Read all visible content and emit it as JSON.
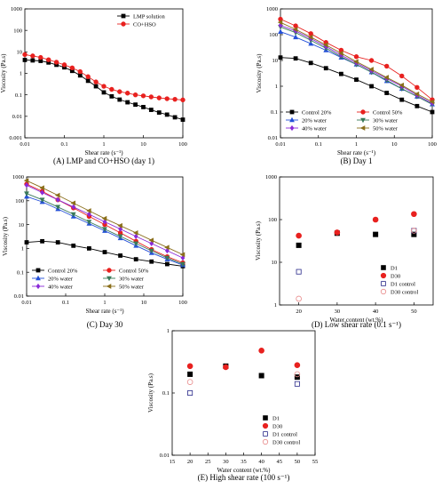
{
  "panels": [
    {
      "id": "A",
      "caption": "(A) LMP and CO+HSO (day 1)",
      "type": "line",
      "xscale": "log",
      "yscale": "log",
      "xlim": [
        0.01,
        100
      ],
      "ylim": [
        0.001,
        1000
      ],
      "xticks": [
        "0.01",
        "0.1",
        "1",
        "10",
        "100"
      ],
      "yticks": [
        "0.001",
        "0.01",
        "0.1",
        "1",
        "10",
        "100",
        "1000"
      ],
      "xlabel": "Shear rate (s⁻¹)",
      "ylabel": "Viscosity (Pa.s)",
      "legend": {
        "position": "top-right",
        "columns": 1
      },
      "series": [
        {
          "name": "LMP solution",
          "color": "#000000",
          "marker": "square",
          "x": [
            0.01,
            0.0158,
            0.0251,
            0.0398,
            0.0631,
            0.1,
            0.158,
            0.251,
            0.398,
            0.631,
            1,
            1.58,
            2.51,
            3.98,
            6.31,
            10,
            15.8,
            25.1,
            39.8,
            63.1,
            100
          ],
          "y": [
            4.2,
            4.0,
            3.8,
            3.2,
            2.5,
            1.9,
            1.3,
            0.8,
            0.45,
            0.25,
            0.13,
            0.085,
            0.06,
            0.045,
            0.035,
            0.027,
            0.02,
            0.015,
            0.012,
            0.009,
            0.007
          ]
        },
        {
          "name": "CO+HSO",
          "color": "#e8211f",
          "marker": "circle",
          "x": [
            0.01,
            0.0158,
            0.0251,
            0.0398,
            0.0631,
            0.1,
            0.158,
            0.251,
            0.398,
            0.631,
            1,
            1.58,
            2.51,
            3.98,
            6.31,
            10,
            15.8,
            25.1,
            39.8,
            63.1,
            100
          ],
          "y": [
            7.5,
            6.5,
            5.5,
            4.3,
            3.3,
            2.5,
            1.8,
            1.2,
            0.7,
            0.4,
            0.25,
            0.18,
            0.14,
            0.12,
            0.1,
            0.09,
            0.08,
            0.072,
            0.066,
            0.062,
            0.058
          ]
        }
      ]
    },
    {
      "id": "B",
      "caption": "(B) Day 1",
      "type": "line",
      "xscale": "log",
      "yscale": "log",
      "xlim": [
        0.01,
        100
      ],
      "ylim": [
        0.01,
        1000
      ],
      "xticks": [
        "0.01",
        "0.1",
        "1",
        "10",
        "100"
      ],
      "yticks": [
        "0.01",
        "0.1",
        "1",
        "10",
        "100",
        "1000"
      ],
      "xlabel": "Shear rate (s⁻¹)",
      "ylabel": "Viscosity (Pa.s)",
      "legend": {
        "position": "bottom-left",
        "columns": 2
      },
      "series": [
        {
          "name": "Control 20%",
          "color": "#000000",
          "marker": "square",
          "x": [
            0.01,
            0.0251,
            0.0631,
            0.158,
            0.398,
            1,
            2.51,
            6.31,
            15.8,
            39.8,
            100
          ],
          "y": [
            13,
            12,
            8,
            5,
            3,
            1.8,
            1,
            0.55,
            0.3,
            0.17,
            0.1
          ]
        },
        {
          "name": "Control 50%",
          "color": "#e8211f",
          "marker": "circle",
          "x": [
            0.01,
            0.0251,
            0.0631,
            0.158,
            0.398,
            1,
            2.51,
            6.31,
            15.8,
            39.8,
            100
          ],
          "y": [
            400,
            220,
            110,
            50,
            25,
            14,
            10,
            6,
            2.5,
            0.9,
            0.3
          ]
        },
        {
          "name": "20% water",
          "color": "#2450d8",
          "marker": "triangle",
          "x": [
            0.01,
            0.0251,
            0.0631,
            0.158,
            0.398,
            1,
            2.51,
            6.31,
            15.8,
            39.8,
            100
          ],
          "y": [
            130,
            80,
            45,
            25,
            13,
            7,
            3.5,
            1.6,
            0.8,
            0.4,
            0.2
          ]
        },
        {
          "name": "30% water",
          "color": "#3a7a5a",
          "marker": "triangle-down",
          "x": [
            0.01,
            0.0251,
            0.0631,
            0.158,
            0.398,
            1,
            2.51,
            6.31,
            15.8,
            39.8,
            100
          ],
          "y": [
            200,
            120,
            60,
            30,
            14,
            7,
            3.5,
            1.7,
            0.8,
            0.4,
            0.2
          ]
        },
        {
          "name": "40% water",
          "color": "#8a2ad8",
          "marker": "diamond",
          "x": [
            0.01,
            0.0251,
            0.0631,
            0.158,
            0.398,
            1,
            2.51,
            6.31,
            15.8,
            39.8,
            100
          ],
          "y": [
            230,
            140,
            70,
            35,
            16,
            8,
            4,
            2,
            1,
            0.45,
            0.22
          ]
        },
        {
          "name": "50% water",
          "color": "#8a6e1a",
          "marker": "triangle-left",
          "x": [
            0.01,
            0.0251,
            0.0631,
            0.158,
            0.398,
            1,
            2.51,
            6.31,
            15.8,
            39.8,
            100
          ],
          "y": [
            300,
            160,
            80,
            40,
            19,
            9,
            4.5,
            2.2,
            1.1,
            0.5,
            0.25
          ]
        }
      ]
    },
    {
      "id": "C",
      "caption": "(C) Day 30",
      "type": "line",
      "xscale": "log",
      "yscale": "log",
      "xlim": [
        0.01,
        100
      ],
      "ylim": [
        0.01,
        1000
      ],
      "xticks": [
        "0.01",
        "0.1",
        "1",
        "10",
        "100"
      ],
      "yticks": [
        "0.01",
        "0.1",
        "1",
        "10",
        "100",
        "1000"
      ],
      "xlabel": "Shear rate (s⁻¹)",
      "ylabel": "Viscosity (Pa.s)",
      "legend": {
        "position": "bottom-left",
        "columns": 2
      },
      "series": [
        {
          "name": "Control 20%",
          "color": "#000000",
          "marker": "square",
          "x": [
            0.01,
            0.0251,
            0.0631,
            0.158,
            0.398,
            1,
            2.51,
            6.31,
            15.8,
            39.8,
            100
          ],
          "y": [
            1.8,
            2,
            1.8,
            1.3,
            1.0,
            0.7,
            0.5,
            0.35,
            0.28,
            0.22,
            0.18
          ]
        },
        {
          "name": "Control 50%",
          "color": "#e8211f",
          "marker": "circle",
          "x": [
            0.01,
            0.0251,
            0.0631,
            0.158,
            0.398,
            1,
            2.51,
            6.31,
            15.8,
            39.8,
            100
          ],
          "y": [
            500,
            250,
            110,
            50,
            22,
            10,
            4.5,
            2,
            0.9,
            0.45,
            0.25
          ]
        },
        {
          "name": "20% water",
          "color": "#2450d8",
          "marker": "triangle",
          "x": [
            0.01,
            0.0251,
            0.0631,
            0.158,
            0.398,
            1,
            2.51,
            6.31,
            15.8,
            39.8,
            100
          ],
          "y": [
            150,
            90,
            45,
            22,
            11,
            5.5,
            2.7,
            1.3,
            0.65,
            0.35,
            0.2
          ]
        },
        {
          "name": "30% water",
          "color": "#3a7a5a",
          "marker": "triangle-down",
          "x": [
            0.01,
            0.0251,
            0.0631,
            0.158,
            0.398,
            1,
            2.51,
            6.31,
            15.8,
            39.8,
            100
          ],
          "y": [
            200,
            110,
            55,
            27,
            13,
            6.5,
            3.2,
            1.6,
            0.8,
            0.4,
            0.22
          ]
        },
        {
          "name": "40% water",
          "color": "#8a2ad8",
          "marker": "diamond",
          "x": [
            0.01,
            0.0251,
            0.0631,
            0.158,
            0.398,
            1,
            2.51,
            6.31,
            15.8,
            39.8,
            100
          ],
          "y": [
            450,
            220,
            110,
            55,
            27,
            13,
            6.5,
            3.2,
            1.6,
            0.8,
            0.4
          ]
        },
        {
          "name": "50% water",
          "color": "#8a6e1a",
          "marker": "triangle-left",
          "x": [
            0.01,
            0.0251,
            0.0631,
            0.158,
            0.398,
            1,
            2.51,
            6.31,
            15.8,
            39.8,
            100
          ],
          "y": [
            700,
            350,
            170,
            80,
            38,
            18,
            9,
            4.5,
            2.2,
            1.1,
            0.55
          ]
        }
      ]
    },
    {
      "id": "D",
      "caption": "(D) Low shear rate (0.1 s⁻¹)",
      "type": "scatter",
      "xscale": "linear",
      "yscale": "log",
      "xlim": [
        15,
        55
      ],
      "ylim": [
        1,
        1000
      ],
      "xticks": [
        "20",
        "30",
        "40",
        "50"
      ],
      "yticks": [
        "1",
        "10",
        "100",
        "1000"
      ],
      "xlabel": "Water content (wt.%)",
      "ylabel": "Viscosity (Pa.s)",
      "legend": {
        "position": "bottom-right",
        "columns": 1
      },
      "series": [
        {
          "name": "D1",
          "color": "#000000",
          "marker": "square",
          "x": [
            20,
            30,
            40,
            50
          ],
          "y": [
            25,
            48,
            45,
            45
          ]
        },
        {
          "name": "D30",
          "color": "#e8211f",
          "marker": "circle",
          "x": [
            20,
            30,
            40,
            50
          ],
          "y": [
            42,
            50,
            100,
            135
          ]
        },
        {
          "name": "D1 control",
          "color": "#2a2a8a",
          "marker": "square-open",
          "x": [
            20,
            50
          ],
          "y": [
            6,
            55
          ]
        },
        {
          "name": "D30 control",
          "color": "#e88a8a",
          "marker": "circle-open",
          "x": [
            20,
            50
          ],
          "y": [
            1.4,
            55
          ]
        }
      ]
    },
    {
      "id": "E",
      "caption": "(E) High shear rate (100 s⁻¹)",
      "type": "scatter",
      "xscale": "linear",
      "yscale": "log",
      "xlim": [
        15,
        55
      ],
      "ylim": [
        0.01,
        1
      ],
      "xticks": [
        "15",
        "20",
        "25",
        "30",
        "35",
        "40",
        "45",
        "50",
        "55"
      ],
      "yticks": [
        "0.01",
        "0.1",
        "1"
      ],
      "xlabel": "Water content (wt.%)",
      "ylabel": "Viscosity (Pa.s)",
      "legend": {
        "position": "bottom-right",
        "columns": 1
      },
      "series": [
        {
          "name": "D1",
          "color": "#000000",
          "marker": "square",
          "x": [
            20,
            30,
            40,
            50
          ],
          "y": [
            0.2,
            0.27,
            0.19,
            0.18
          ]
        },
        {
          "name": "D30",
          "color": "#e8211f",
          "marker": "circle",
          "x": [
            20,
            30,
            40,
            50
          ],
          "y": [
            0.27,
            0.26,
            0.48,
            0.28
          ]
        },
        {
          "name": "D1 control",
          "color": "#2a2a8a",
          "marker": "square-open",
          "x": [
            20,
            50
          ],
          "y": [
            0.1,
            0.14
          ]
        },
        {
          "name": "D30 control",
          "color": "#e88a8a",
          "marker": "circle-open",
          "x": [
            20,
            50
          ],
          "y": [
            0.15,
            0.2
          ]
        }
      ]
    }
  ]
}
